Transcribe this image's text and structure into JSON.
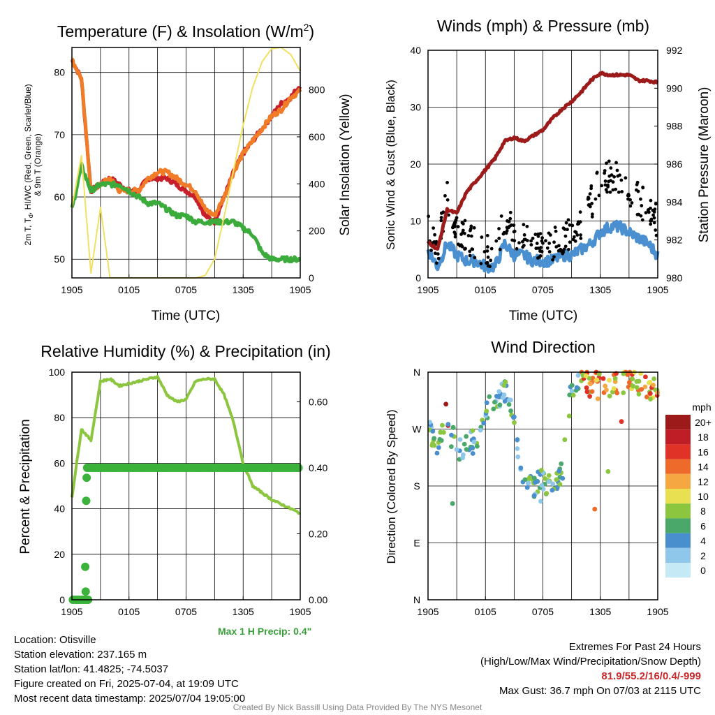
{
  "colors": {
    "temp": "#c8202a",
    "dew": "#3bab3b",
    "hiwc": "#2a8a2a",
    "temp9m": "#f07c28",
    "insolation": "#f2e060",
    "wind": "#4a90d0",
    "gust": "#000000",
    "pressure": "#9c1a1a",
    "rh": "#8cc63f",
    "precip": "#3bb33b"
  },
  "chart_data": [
    {
      "type": "line",
      "title": "Temperature (F) & Insolation (W/m²)",
      "xlabel": "Time (UTC)",
      "ylabel": "2m T, Td, HI/WC (Red, Green, Scarlet/Blue) & 9m T (Orange)",
      "y2label": "Solar Insolation (Yellow)",
      "xticks": [
        "1905",
        "0105",
        "0705",
        "1305",
        "1905"
      ],
      "ylim": [
        47,
        84
      ],
      "yticks": [
        50,
        60,
        70,
        80
      ],
      "y2lim": [
        0,
        980
      ],
      "y2ticks": [
        0,
        200,
        400,
        600,
        800
      ],
      "x_hours": [
        0,
        1,
        2,
        3,
        4,
        5,
        6,
        7,
        8,
        9,
        10,
        11,
        12,
        13,
        14,
        15,
        16,
        17,
        18,
        19,
        20,
        21,
        22,
        23,
        24
      ],
      "series": [
        {
          "key": "temp",
          "values": [
            82,
            79,
            61,
            62,
            63,
            62,
            61,
            61,
            63,
            63,
            63,
            62,
            61,
            60,
            57,
            56,
            60,
            64,
            67,
            69,
            71,
            73,
            75,
            76,
            78
          ]
        },
        {
          "key": "temp9m",
          "values": [
            82,
            79,
            61,
            62,
            63,
            61,
            61,
            61,
            63,
            64,
            64,
            63,
            62,
            61,
            58,
            57,
            60,
            64,
            67,
            69,
            71,
            73,
            74,
            76,
            77
          ]
        },
        {
          "key": "dew",
          "values": [
            58,
            65,
            61,
            62,
            62,
            62,
            61,
            60,
            59,
            59,
            58,
            57,
            57,
            56,
            56,
            56,
            56,
            56,
            55,
            54,
            51,
            50,
            50,
            50,
            50
          ]
        },
        {
          "key": "insolation",
          "axis": "y2",
          "values": [
            300,
            520,
            20,
            300,
            0,
            0,
            0,
            0,
            0,
            0,
            0,
            0,
            0,
            0,
            10,
            80,
            260,
            460,
            650,
            810,
            920,
            975,
            980,
            950,
            880
          ]
        }
      ]
    },
    {
      "type": "line",
      "title": "Winds (mph) & Pressure (mb)",
      "xlabel": "Time (UTC)",
      "ylabel": "Sonic Wind & Gust (Blue, Black)",
      "y2label": "Station Pressure (Maroon)",
      "xticks": [
        "1905",
        "0105",
        "0705",
        "1305",
        "1905"
      ],
      "ylim": [
        0,
        40
      ],
      "yticks": [
        0,
        10,
        20,
        30,
        40
      ],
      "y2lim": [
        980,
        992
      ],
      "y2ticks": [
        980,
        982,
        984,
        986,
        988,
        990,
        992
      ],
      "x_hours": [
        0,
        1,
        2,
        3,
        4,
        5,
        6,
        7,
        8,
        9,
        10,
        11,
        12,
        13,
        14,
        15,
        16,
        17,
        18,
        19,
        20,
        21,
        22,
        23,
        24
      ],
      "series": [
        {
          "key": "wind",
          "values": [
            5,
            2,
            6,
            4,
            3,
            3,
            2,
            2,
            6,
            4,
            4,
            3,
            3,
            3,
            4,
            4,
            5,
            6,
            8,
            9,
            9,
            8,
            7,
            6,
            4
          ]
        },
        {
          "key": "gust",
          "type": "scatter",
          "values": [
            9,
            5,
            15,
            8,
            7,
            6,
            5,
            5,
            10,
            8,
            8,
            6,
            6,
            6,
            7,
            8,
            10,
            13,
            17,
            18,
            17,
            15,
            14,
            12,
            10
          ]
        },
        {
          "key": "pressure",
          "axis": "y2",
          "values": [
            981.9,
            981.5,
            983.6,
            983.4,
            984.5,
            985.1,
            985.7,
            986.3,
            987.2,
            987.4,
            987.2,
            987.5,
            987.8,
            988.4,
            988.9,
            989.3,
            989.8,
            990.4,
            990.8,
            990.7,
            990.7,
            990.7,
            990.4,
            990.4,
            990.3
          ]
        }
      ]
    },
    {
      "type": "line",
      "title": "Relative Humidity (%) & Precipitation (in)",
      "ylabel": "Percent & Precipitation",
      "xticks": [
        "1905",
        "0105",
        "0705",
        "1305",
        "1905"
      ],
      "ylim": [
        0,
        100
      ],
      "yticks": [
        0,
        20,
        40,
        60,
        80,
        100
      ],
      "y2lim": [
        0,
        0.69
      ],
      "y2ticks": [
        "0.00",
        "0.20",
        "0.40",
        "0.60"
      ],
      "x_hours": [
        0,
        1,
        2,
        3,
        4,
        5,
        6,
        7,
        8,
        9,
        10,
        11,
        12,
        13,
        14,
        15,
        16,
        17,
        18,
        19,
        20,
        21,
        22,
        23,
        24
      ],
      "series": [
        {
          "key": "rh",
          "values": [
            45,
            75,
            70,
            96,
            97,
            94,
            95,
            96,
            97,
            98,
            90,
            87,
            88,
            96,
            97,
            97,
            90,
            78,
            60,
            50,
            47,
            44,
            42,
            40,
            38
          ]
        },
        {
          "key": "precip",
          "axis": "y2",
          "values": [
            0,
            0,
            0.01,
            0.4,
            0.4,
            0.4,
            0.4,
            0.4,
            0.4,
            0.4,
            0.4,
            0.4,
            0.4,
            0.4,
            0.4,
            0.4,
            0.4,
            0.4,
            0.4,
            0.4,
            0.4,
            0.4,
            0.4,
            0.4,
            0.4
          ]
        }
      ]
    },
    {
      "type": "scatter",
      "title": "Wind Direction",
      "ylabel": "Direction (Colored By Speed)",
      "xticks": [
        "1905",
        "0105",
        "0705",
        "1305",
        "1905"
      ],
      "yticks": [
        "N",
        "E",
        "S",
        "W",
        "N"
      ],
      "ylim": [
        0,
        360
      ],
      "legend_title": "mph",
      "legend_labels": [
        "0",
        "2",
        "4",
        "6",
        "8",
        "10",
        "12",
        "14",
        "16",
        "18",
        "20+"
      ],
      "legend_colors": [
        "#c6e9f6",
        "#8ec7ea",
        "#4a8fcd",
        "#4aa86a",
        "#8cc63f",
        "#e8e050",
        "#f5a742",
        "#ee6a2a",
        "#e03226",
        "#c01e26",
        "#9c1a1a"
      ],
      "x_hours": [
        0,
        1,
        2,
        3,
        4,
        5,
        6,
        7,
        8,
        9,
        10,
        11,
        12,
        13,
        14,
        15,
        16,
        17,
        18,
        19,
        20,
        21,
        22,
        23,
        24
      ],
      "values": [
        270,
        250,
        300,
        230,
        250,
        250,
        300,
        320,
        330,
        280,
        190,
        180,
        190,
        170,
        200,
        340,
        345,
        340,
        350,
        340,
        345,
        350,
        340,
        335,
        330
      ]
    }
  ],
  "info_left": [
    "Location: Otisville",
    "Station elevation: 237.165 m",
    "Station lat/lon: 41.4825; -74.5037",
    "Figure created on Fri, 2025-07-04, at 19:09 UTC",
    "Most recent data timestamp: 2025/07/04 19:05:00"
  ],
  "info_right": {
    "line1": "Extremes For Past 24 Hours",
    "line2": "(High/Low/Max Wind/Precipitation/Snow Depth)",
    "values": "81.9/55.2/16/0.4/-999",
    "gust": "Max Gust: 36.7 mph On 07/03 at 2115 UTC"
  },
  "precip_note": "Max 1 H Precip: 0.4\"",
  "credit": "Created By Nick Bassill Using Data Provided By The NYS Mesonet"
}
